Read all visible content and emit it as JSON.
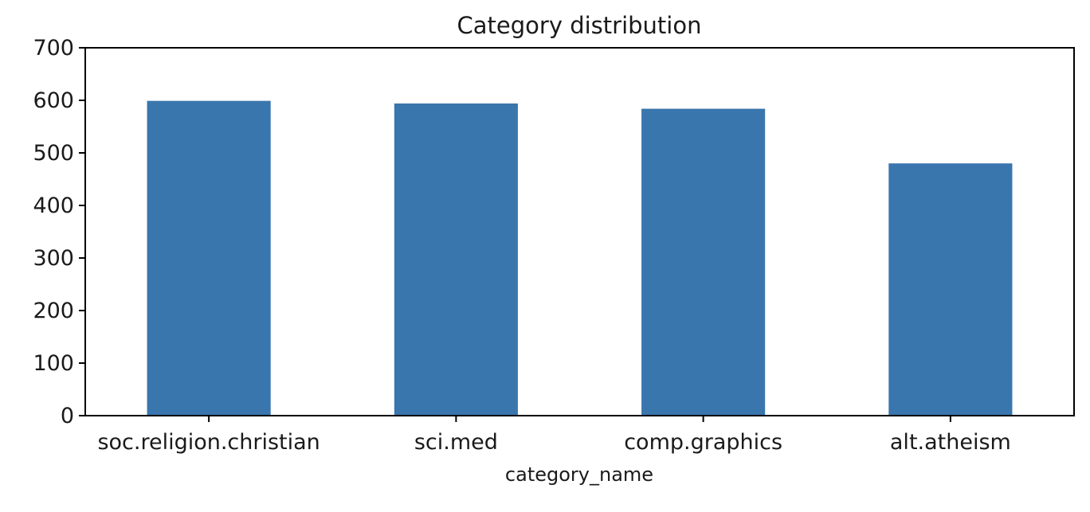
{
  "chart_data": {
    "type": "bar",
    "title": "Category distribution",
    "xlabel": "category_name",
    "ylabel": "",
    "categories": [
      "soc.religion.christian",
      "sci.med",
      "comp.graphics",
      "alt.atheism"
    ],
    "values": [
      599,
      594,
      584,
      480
    ],
    "ylim": [
      0,
      700
    ],
    "yticks": [
      0,
      100,
      200,
      300,
      400,
      500,
      600,
      700
    ],
    "ytick_labels": [
      "0",
      "100",
      "200",
      "300",
      "400",
      "500",
      "600",
      "700"
    ],
    "grid": false,
    "legend": "none",
    "bar_color": "#3a76ae",
    "axis_color": "#000000"
  }
}
